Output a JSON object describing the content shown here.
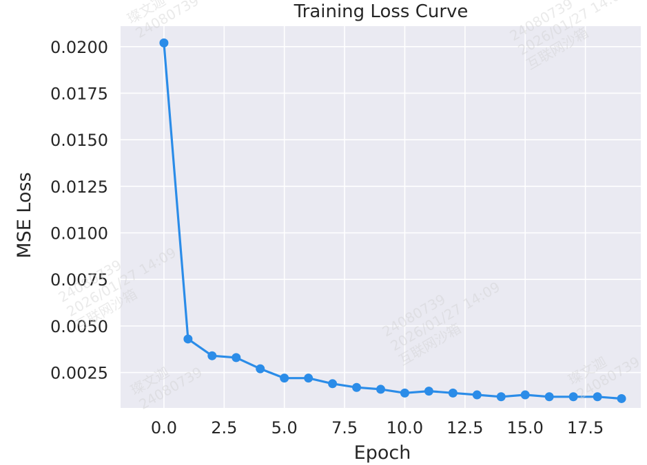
{
  "chart_data": {
    "type": "line",
    "title": "Training Loss Curve",
    "xlabel": "Epoch",
    "ylabel": "MSE Loss",
    "xlim": [
      -1.8,
      19.8
    ],
    "ylim": [
      0.0006,
      0.0211
    ],
    "x_ticks": [
      0.0,
      2.5,
      5.0,
      7.5,
      10.0,
      12.5,
      15.0,
      17.5
    ],
    "x_tick_labels": [
      "0.0",
      "2.5",
      "5.0",
      "7.5",
      "10.0",
      "12.5",
      "15.0",
      "17.5"
    ],
    "y_ticks": [
      0.0025,
      0.005,
      0.0075,
      0.01,
      0.0125,
      0.015,
      0.0175,
      0.02
    ],
    "y_tick_labels": [
      "0.0025",
      "0.0050",
      "0.0075",
      "0.0100",
      "0.0125",
      "0.0150",
      "0.0175",
      "0.0200"
    ],
    "grid": true,
    "background": "#eaeaf2",
    "series": [
      {
        "color": "#2b8ce8",
        "x": [
          0,
          1,
          2,
          3,
          4,
          5,
          6,
          7,
          8,
          9,
          10,
          11,
          12,
          13,
          14,
          15,
          16,
          17,
          18,
          19
        ],
        "values": [
          0.0202,
          0.0043,
          0.0034,
          0.0033,
          0.0027,
          0.0022,
          0.0022,
          0.0019,
          0.0017,
          0.0016,
          0.0014,
          0.0015,
          0.0014,
          0.0013,
          0.0012,
          0.0013,
          0.0012,
          0.0012,
          0.0012,
          0.0011
        ]
      }
    ]
  },
  "watermark": {
    "lines": [
      "璨文迦",
      "24080739",
      "2026/01/27 14:09",
      "互联网沙箱"
    ]
  }
}
